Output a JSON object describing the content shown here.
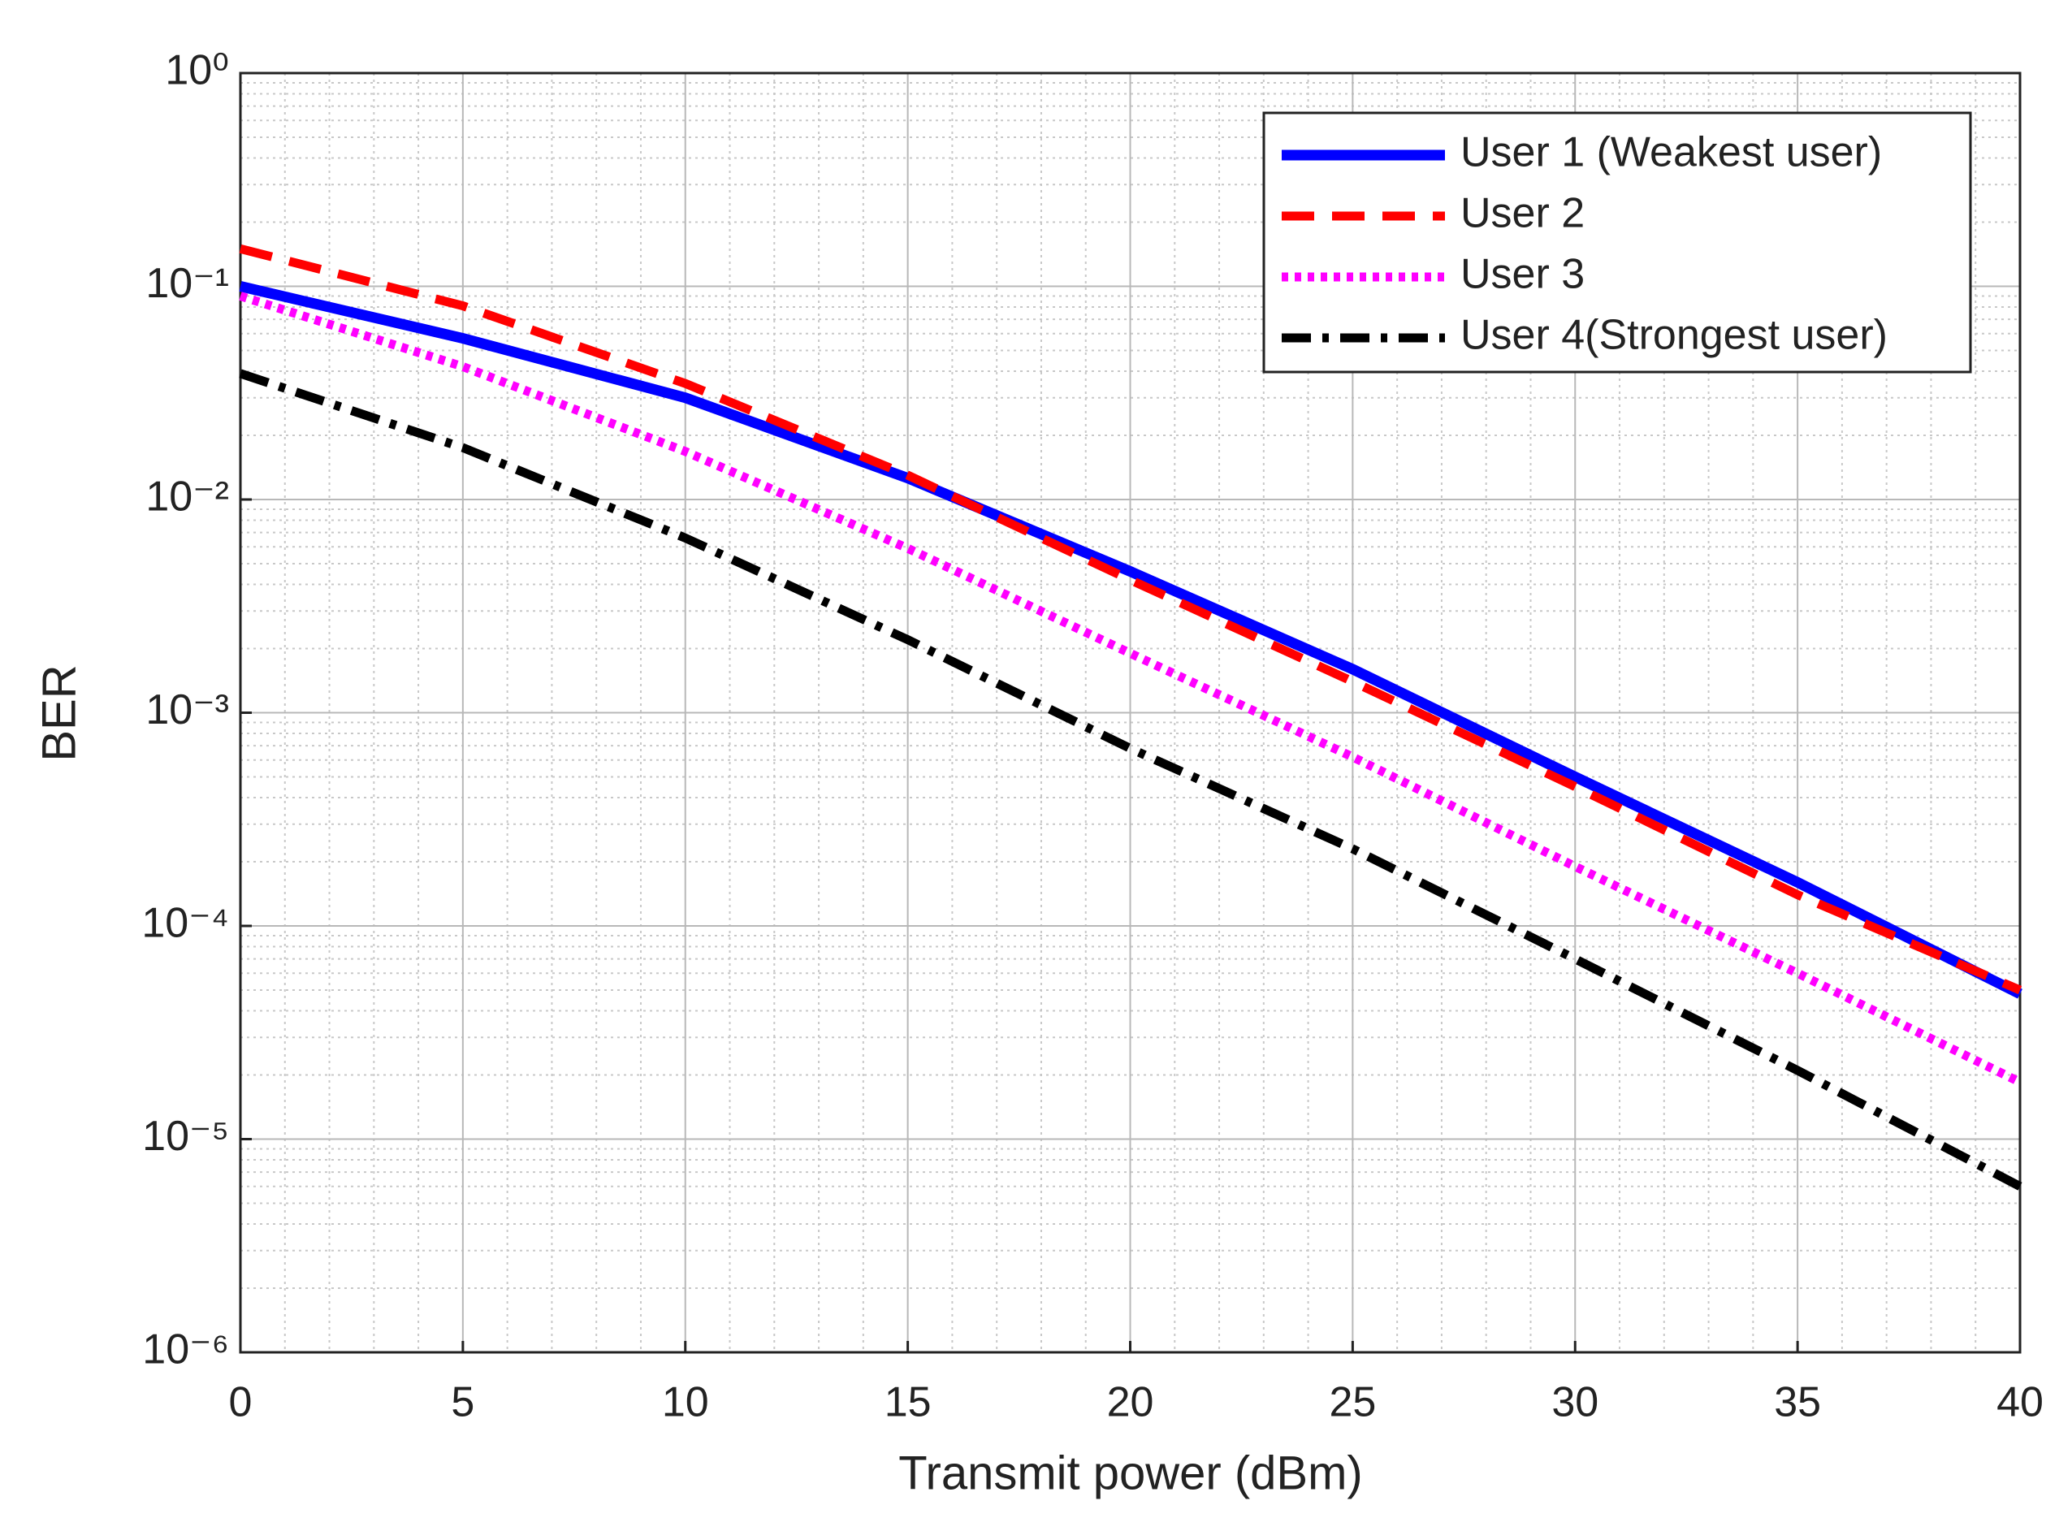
{
  "chart_data": {
    "type": "line",
    "x_label": "Transmit power (dBm)",
    "y_label": "BER",
    "x": [
      0,
      5,
      10,
      15,
      20,
      25,
      30,
      35,
      40
    ],
    "series": [
      {
        "name": "User 1 (Weakest user)",
        "color": "#0000ff",
        "linestyle": "solid",
        "values": [
          0.1,
          0.057,
          0.03,
          0.0126,
          0.0046,
          0.0016,
          0.0005,
          0.00016,
          4.8e-05
        ]
      },
      {
        "name": "User 2",
        "color": "#ff0000",
        "linestyle": "dashed",
        "values": [
          0.15,
          0.081,
          0.035,
          0.013,
          0.0042,
          0.0014,
          0.00045,
          0.00014,
          5e-05
        ]
      },
      {
        "name": "User 3",
        "color": "#ff00ff",
        "linestyle": "dotted",
        "values": [
          0.09,
          0.042,
          0.0168,
          0.0059,
          0.0019,
          0.00062,
          0.00019,
          6e-05,
          1.85e-05
        ]
      },
      {
        "name": "User 4(Strongest user)",
        "color": "#000000",
        "linestyle": "dashdot",
        "values": [
          0.039,
          0.0175,
          0.0066,
          0.0022,
          0.00068,
          0.00023,
          7e-05,
          2.1e-05,
          6e-06
        ]
      }
    ],
    "xlim": [
      0,
      40
    ],
    "xticks": [
      0,
      5,
      10,
      15,
      20,
      25,
      30,
      35,
      40
    ],
    "ylim": [
      1e-06,
      1
    ],
    "yscale": "log",
    "yticks": [
      {
        "value": 1e-06,
        "label": "10⁻⁶"
      },
      {
        "value": 1e-05,
        "label": "10⁻⁵"
      },
      {
        "value": 0.0001,
        "label": "10⁻⁴"
      },
      {
        "value": 0.001,
        "label": "10⁻³"
      },
      {
        "value": 0.01,
        "label": "10⁻²"
      },
      {
        "value": 0.1,
        "label": "10⁻¹"
      },
      {
        "value": 1,
        "label": "10⁰"
      }
    ],
    "grid": true,
    "minor_grid": true,
    "legend": "upper right"
  }
}
